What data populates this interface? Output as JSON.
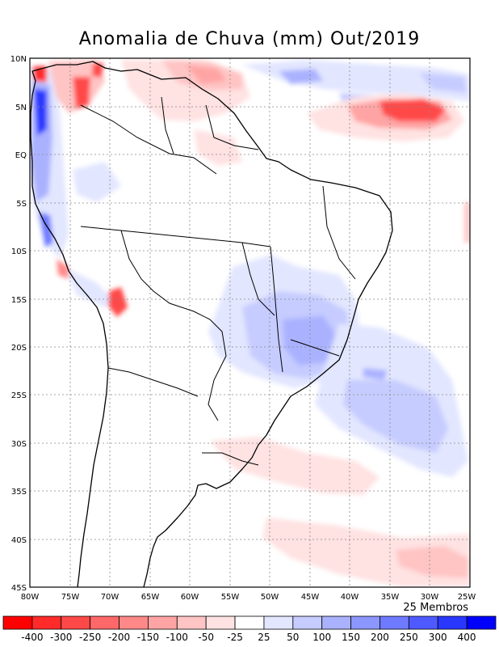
{
  "title": "Anomalia de Chuva (mm) Out/2019",
  "members_label": "25 Membros",
  "lat_ticks": [
    "10N",
    "5N",
    "EQ",
    "5S",
    "10S",
    "15S",
    "20S",
    "25S",
    "30S",
    "35S",
    "40S",
    "45S"
  ],
  "lon_ticks": [
    "80W",
    "75W",
    "70W",
    "65W",
    "60W",
    "55W",
    "50W",
    "45W",
    "40W",
    "35W",
    "30W",
    "25W"
  ],
  "colorbar": {
    "labels": [
      "-400",
      "-300",
      "-250",
      "-200",
      "-150",
      "-100",
      "-50",
      "-25",
      "25",
      "50",
      "100",
      "150",
      "200",
      "250",
      "300",
      "400"
    ],
    "colors": [
      "#ff0000",
      "#ff2a2a",
      "#ff4848",
      "#ff6868",
      "#ff8888",
      "#ffa4a4",
      "#ffc4c4",
      "#ffe2e2",
      "#ffffff",
      "#e2e6ff",
      "#c6ccff",
      "#aab2ff",
      "#8c96ff",
      "#6e7aff",
      "#4e5aff",
      "#2a38ff",
      "#0000ff"
    ]
  }
}
